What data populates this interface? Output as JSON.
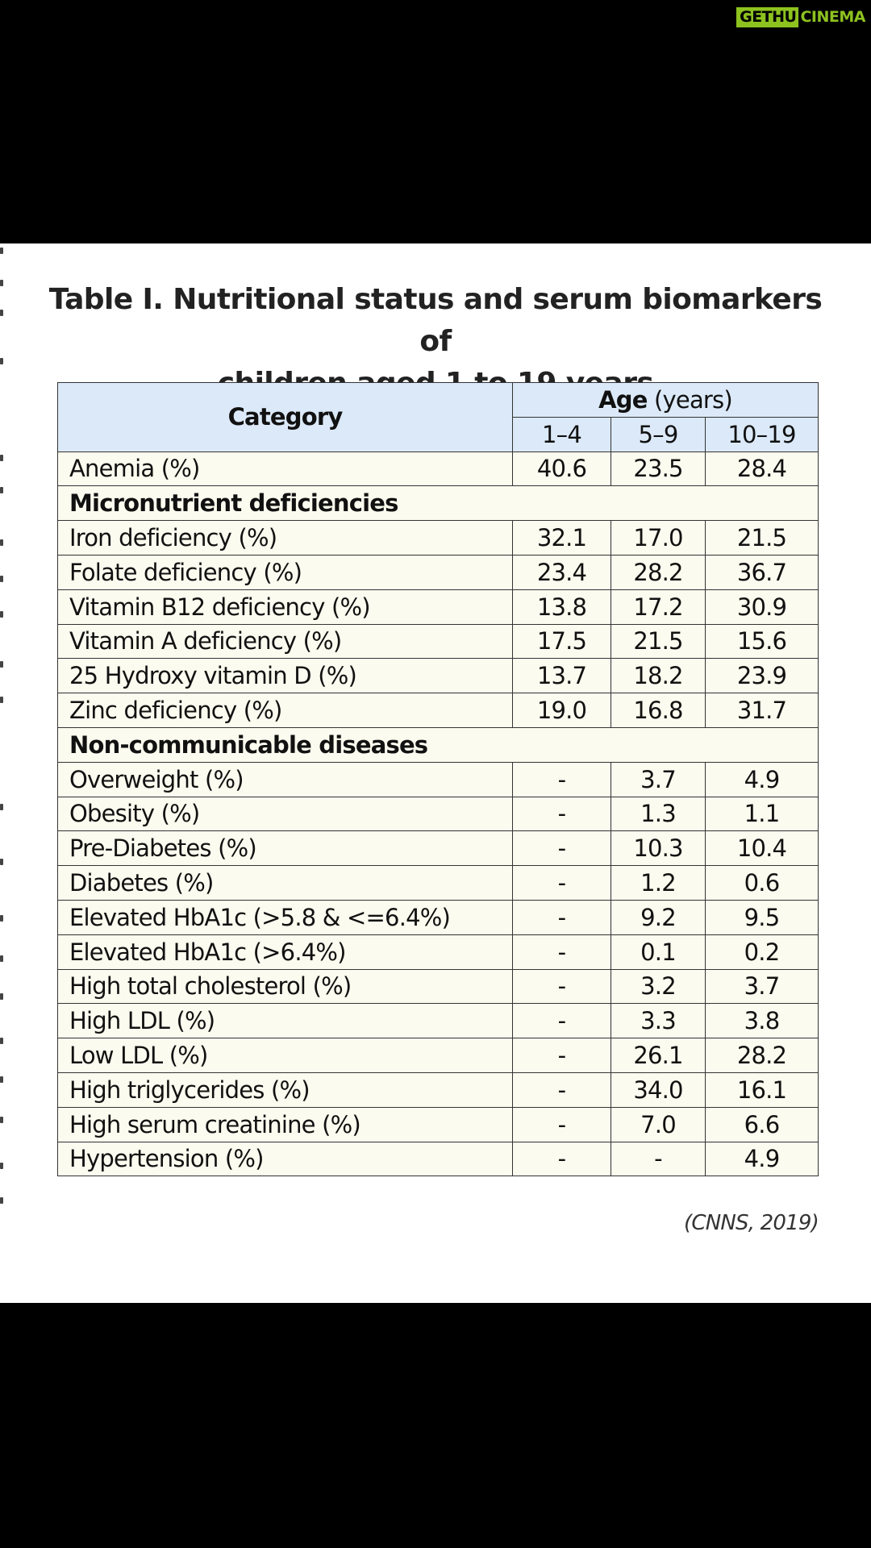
{
  "watermark": {
    "left": "GETHU",
    "right": "CINEMA"
  },
  "title": {
    "line1": "Table I. Nutritional status and serum biomarkers of",
    "line2": "children aged 1 to 19 years"
  },
  "table": {
    "category_header": "Category",
    "age_header_bold": "Age",
    "age_header_rest": " (years)",
    "age_groups": [
      "1–4",
      "5–9",
      "10–19"
    ],
    "rows": [
      {
        "type": "data",
        "label": "Anemia (%)",
        "values": [
          "40.6",
          "23.5",
          "28.4"
        ]
      },
      {
        "type": "section",
        "label": "Micronutrient deficiencies"
      },
      {
        "type": "data",
        "label": "Iron deficiency (%)",
        "values": [
          "32.1",
          "17.0",
          "21.5"
        ]
      },
      {
        "type": "data",
        "label": "Folate deficiency (%)",
        "values": [
          "23.4",
          "28.2",
          "36.7"
        ]
      },
      {
        "type": "data",
        "label": "Vitamin B12 deficiency (%)",
        "values": [
          "13.8",
          "17.2",
          "30.9"
        ]
      },
      {
        "type": "data",
        "label": "Vitamin A deficiency (%)",
        "values": [
          "17.5",
          "21.5",
          "15.6"
        ]
      },
      {
        "type": "data",
        "label": "25 Hydroxy vitamin D (%)",
        "values": [
          "13.7",
          "18.2",
          "23.9"
        ]
      },
      {
        "type": "data",
        "label": "Zinc deficiency (%)",
        "values": [
          "19.0",
          "16.8",
          "31.7"
        ]
      },
      {
        "type": "section",
        "label": "Non-communicable diseases"
      },
      {
        "type": "data",
        "label": "Overweight (%)",
        "values": [
          "-",
          "3.7",
          "4.9"
        ]
      },
      {
        "type": "data",
        "label": "Obesity (%)",
        "values": [
          "-",
          "1.3",
          "1.1"
        ]
      },
      {
        "type": "data",
        "label": "Pre-Diabetes (%)",
        "values": [
          "-",
          "10.3",
          "10.4"
        ]
      },
      {
        "type": "data",
        "label": "Diabetes (%)",
        "values": [
          "-",
          "1.2",
          "0.6"
        ]
      },
      {
        "type": "data",
        "label": "Elevated HbA1c (>5.8 & <=6.4%)",
        "values": [
          "-",
          "9.2",
          "9.5"
        ]
      },
      {
        "type": "data",
        "label": "Elevated HbA1c (>6.4%)",
        "values": [
          "-",
          "0.1",
          "0.2"
        ]
      },
      {
        "type": "data",
        "label": "High total cholesterol (%)",
        "values": [
          "-",
          "3.2",
          "3.7"
        ]
      },
      {
        "type": "data",
        "label": "High LDL (%)",
        "values": [
          "-",
          "3.3",
          "3.8"
        ]
      },
      {
        "type": "data",
        "label": "Low LDL (%)",
        "values": [
          "-",
          "26.1",
          "28.2"
        ]
      },
      {
        "type": "data",
        "label": "High triglycerides (%)",
        "values": [
          "-",
          "34.0",
          "16.1"
        ]
      },
      {
        "type": "data",
        "label": "High serum creatinine (%)",
        "values": [
          "-",
          "7.0",
          "6.6"
        ]
      },
      {
        "type": "data",
        "label": "Hypertension (%)",
        "values": [
          "-",
          "-",
          "4.9"
        ]
      }
    ]
  },
  "source_note": "(CNNS, 2019)",
  "colors": {
    "header_bg": "#dbe9f8",
    "body_bg": "#fbfbef",
    "watermark_green": "#8dc21f",
    "border": "#333333"
  }
}
